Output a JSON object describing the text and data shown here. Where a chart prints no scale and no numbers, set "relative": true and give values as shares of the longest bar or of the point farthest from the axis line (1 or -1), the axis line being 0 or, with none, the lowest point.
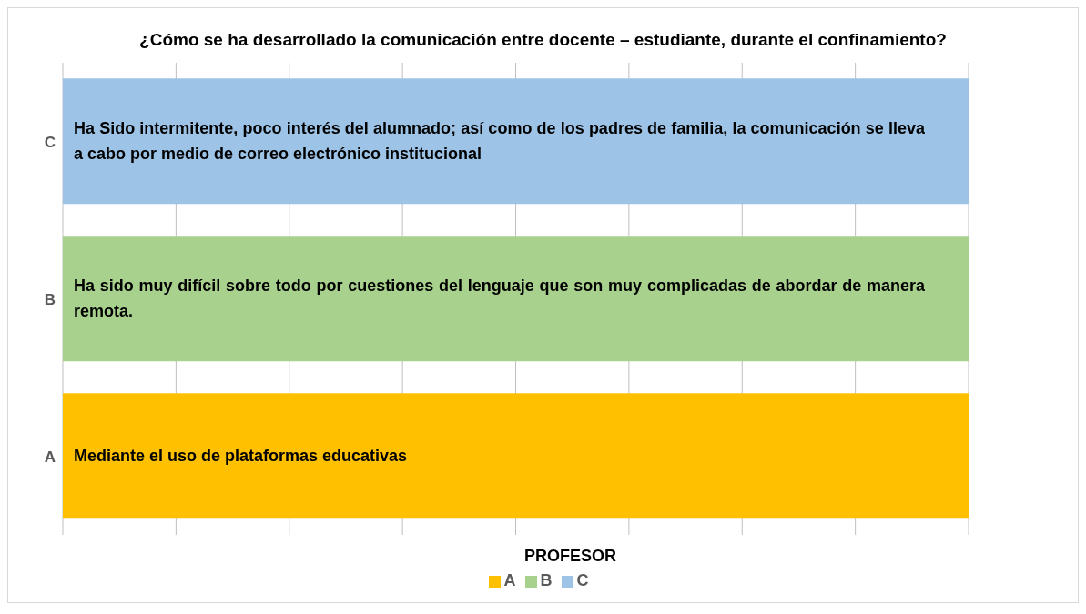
{
  "chart_data": {
    "type": "bar",
    "orientation": "horizontal",
    "relative": true,
    "stacked": true,
    "title": "¿Cómo se ha desarrollado la comunicación entre docente – estudiante, durante el confinamiento?",
    "categories": [
      "C",
      "B",
      "A"
    ],
    "series": [
      {
        "name": "A",
        "color": "#ffc000",
        "values": [
          null,
          null,
          1
        ]
      },
      {
        "name": "B",
        "color": "#a9d18e",
        "values": [
          null,
          1,
          null
        ]
      },
      {
        "name": "C",
        "color": "#9dc3e6",
        "values": [
          1,
          null,
          null
        ]
      }
    ],
    "annotations": [
      "Ha Sido intermitente, poco interés del alumnado; así como de los padres de familia, la comunicación se lleva a cabo por medio de correo electrónico institucional",
      "Ha sido muy difícil sobre todo por cuestiones del lenguaje que son muy complicadas de abordar de manera remota.",
      "Mediante el uso de plataformas educativas"
    ],
    "legend_title": "PROFESOR",
    "legend": "bottom",
    "grid": "x",
    "tick_labels": "y"
  }
}
